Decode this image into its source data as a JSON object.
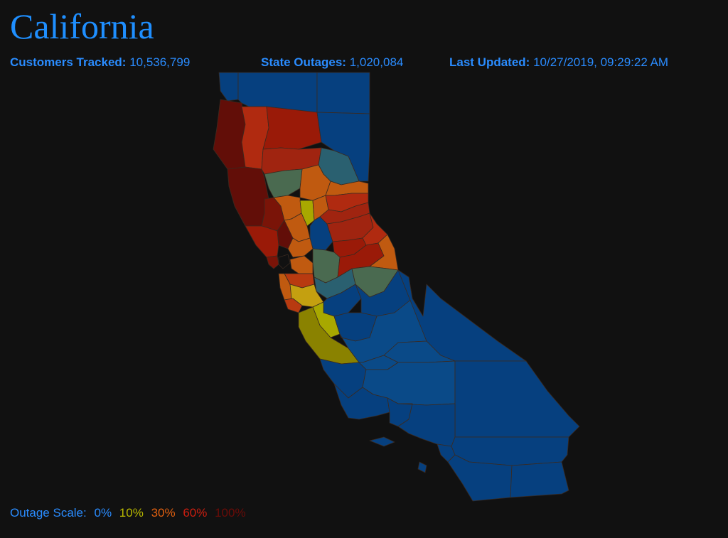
{
  "header": {
    "title": "California"
  },
  "stats": {
    "customers_tracked_label": "Customers Tracked:",
    "customers_tracked_value": "10,536,799",
    "state_outages_label": "State Outages:",
    "state_outages_value": "1,020,084",
    "last_updated_label": "Last Updated:",
    "last_updated_value": "10/27/2019, 09:29:22 AM"
  },
  "legend": {
    "label": "Outage Scale:",
    "steps": [
      {
        "text": "0%",
        "color": "#2a8cff"
      },
      {
        "text": "10%",
        "color": "#b8b800"
      },
      {
        "text": "30%",
        "color": "#e06010"
      },
      {
        "text": "60%",
        "color": "#cc1e10"
      },
      {
        "text": "100%",
        "color": "#6a0c08"
      }
    ]
  },
  "colors": {
    "background": "#111111",
    "accent": "#2a8cff",
    "scale_0": "#06407f",
    "scale_low_teal": "#2a6070",
    "scale_green": "#4a6a50",
    "scale_10": "#8a8200",
    "scale_10_bright": "#a8a800",
    "scale_30": "#c05a10",
    "scale_45": "#b83a10",
    "scale_60": "#9a1a08",
    "scale_100": "#620e08"
  }
}
